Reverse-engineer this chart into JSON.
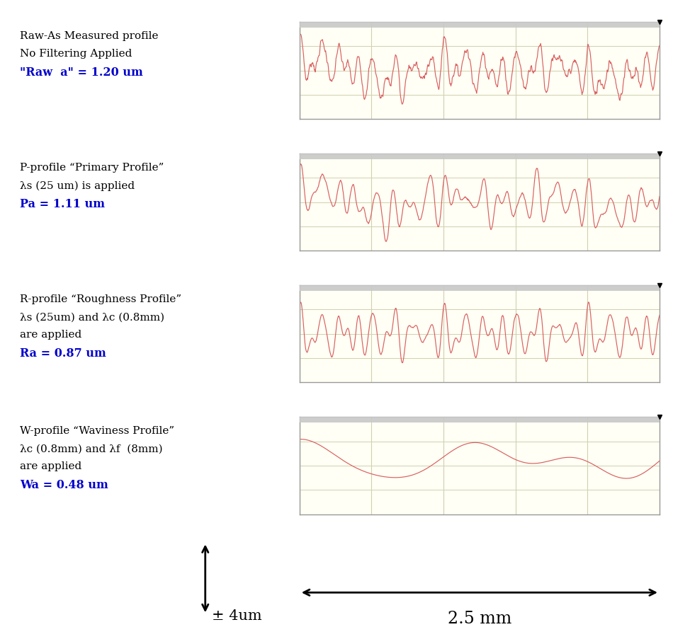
{
  "background_color": "#ffffff",
  "plot_bg_color": "#fffff5",
  "plot_border_color": "#999999",
  "line_color": "#d96060",
  "grid_color": "#d0d0b0",
  "xlim": [
    0,
    2.5
  ],
  "xticks": [
    0.0,
    0.5,
    1.0,
    1.5,
    2.0,
    2.5
  ],
  "panels": [
    {
      "label_lines": [
        "Raw-As Measured profile",
        "No Filtering Applied"
      ],
      "label_bold": "\"Raw  a\" = 1.20 um",
      "label_bold_color": "#0000cc",
      "profile_type": "raw"
    },
    {
      "label_lines": [
        "P-profile “Primary Profile”",
        "λs (25 um) is applied"
      ],
      "label_bold": "Pa = 1.11 um",
      "label_bold_color": "#0000cc",
      "profile_type": "primary"
    },
    {
      "label_lines": [
        "R-profile “Roughness Profile”",
        "λs (25um) and λc (0.8mm)",
        "are applied"
      ],
      "label_bold": "Ra = 0.87 um",
      "label_bold_color": "#0000cc",
      "profile_type": "roughness"
    },
    {
      "label_lines": [
        "W-profile “Waviness Profile”",
        "λc (0.8mm) and λf  (8mm)",
        "are applied"
      ],
      "label_bold": "Wa = 0.48 um",
      "label_bold_color": "#0000cc",
      "profile_type": "waviness"
    }
  ],
  "bottom_arrow_label": "± 4um",
  "bottom_scale_label": "2.5 mm"
}
